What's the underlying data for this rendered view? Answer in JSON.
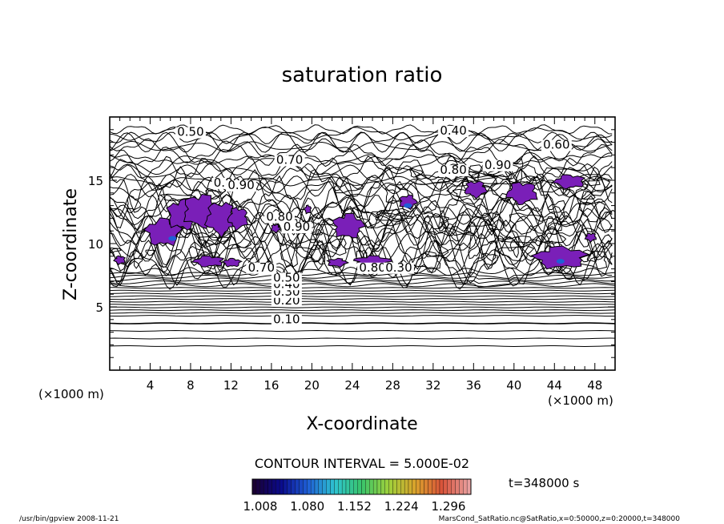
{
  "chart_data": {
    "type": "contour",
    "title": "saturation ratio",
    "xlabel": "X-coordinate",
    "ylabel": "Z-coordinate",
    "x_unit_label": "(×1000 m)",
    "y_unit_label": "(×1000 m)",
    "xlim": [
      0,
      50
    ],
    "ylim": [
      0,
      20
    ],
    "x_ticks": [
      4,
      8,
      12,
      16,
      20,
      24,
      28,
      32,
      36,
      40,
      44,
      48
    ],
    "y_ticks": [
      5,
      10,
      15
    ],
    "contour_interval_label": "CONTOUR INTERVAL = 5.000E-02",
    "contour_interval": 0.05,
    "contour_labels": [
      {
        "text": "0.10",
        "x": 17.5,
        "y": 3.7
      },
      {
        "text": "0.20",
        "x": 17.5,
        "y": 5.2
      },
      {
        "text": "0.30",
        "x": 17.5,
        "y": 5.9
      },
      {
        "text": "0.40",
        "x": 17.5,
        "y": 6.5
      },
      {
        "text": "0.50",
        "x": 17.5,
        "y": 7.0
      },
      {
        "text": "0.70",
        "x": 15.0,
        "y": 7.8
      },
      {
        "text": "0.80",
        "x": 26.0,
        "y": 7.8
      },
      {
        "text": "0.30",
        "x": 28.6,
        "y": 7.8
      },
      {
        "text": "0.50",
        "x": 8.0,
        "y": 18.5
      },
      {
        "text": "0.40",
        "x": 34.0,
        "y": 18.6
      },
      {
        "text": "0.60",
        "x": 44.2,
        "y": 17.5
      },
      {
        "text": "0.70",
        "x": 17.8,
        "y": 16.3
      },
      {
        "text": "0.80",
        "x": 34.0,
        "y": 15.5
      },
      {
        "text": "0.90",
        "x": 38.4,
        "y": 15.9
      },
      {
        "text": "0.80",
        "x": 11.6,
        "y": 14.5
      },
      {
        "text": "0.90",
        "x": 13.0,
        "y": 14.3
      },
      {
        "text": "0.80",
        "x": 16.8,
        "y": 11.8
      },
      {
        "text": "0.90",
        "x": 18.5,
        "y": 11.0
      }
    ],
    "shaded_regions_note": "supersaturated (ratio > 1.008) patches",
    "colorbar": {
      "min": 1.008,
      "max": 1.296,
      "tick_labels": [
        "1.008",
        "1.080",
        "1.152",
        "1.224",
        "1.296"
      ],
      "colors": [
        "#1a0033",
        "#0a0a8c",
        "#1f5fd6",
        "#2ec4d0",
        "#39c46b",
        "#9ed13b",
        "#d9a22b",
        "#d9533a",
        "#e8a0a0"
      ]
    },
    "fill_color": "#7a1fb8",
    "time_label": "t=348000 s"
  },
  "footer": {
    "left": "/usr/bin/gpview   2008-11-21",
    "right": "MarsCond_SatRatio.nc@SatRatio,x=0:50000,z=0:20000,t=348000"
  }
}
